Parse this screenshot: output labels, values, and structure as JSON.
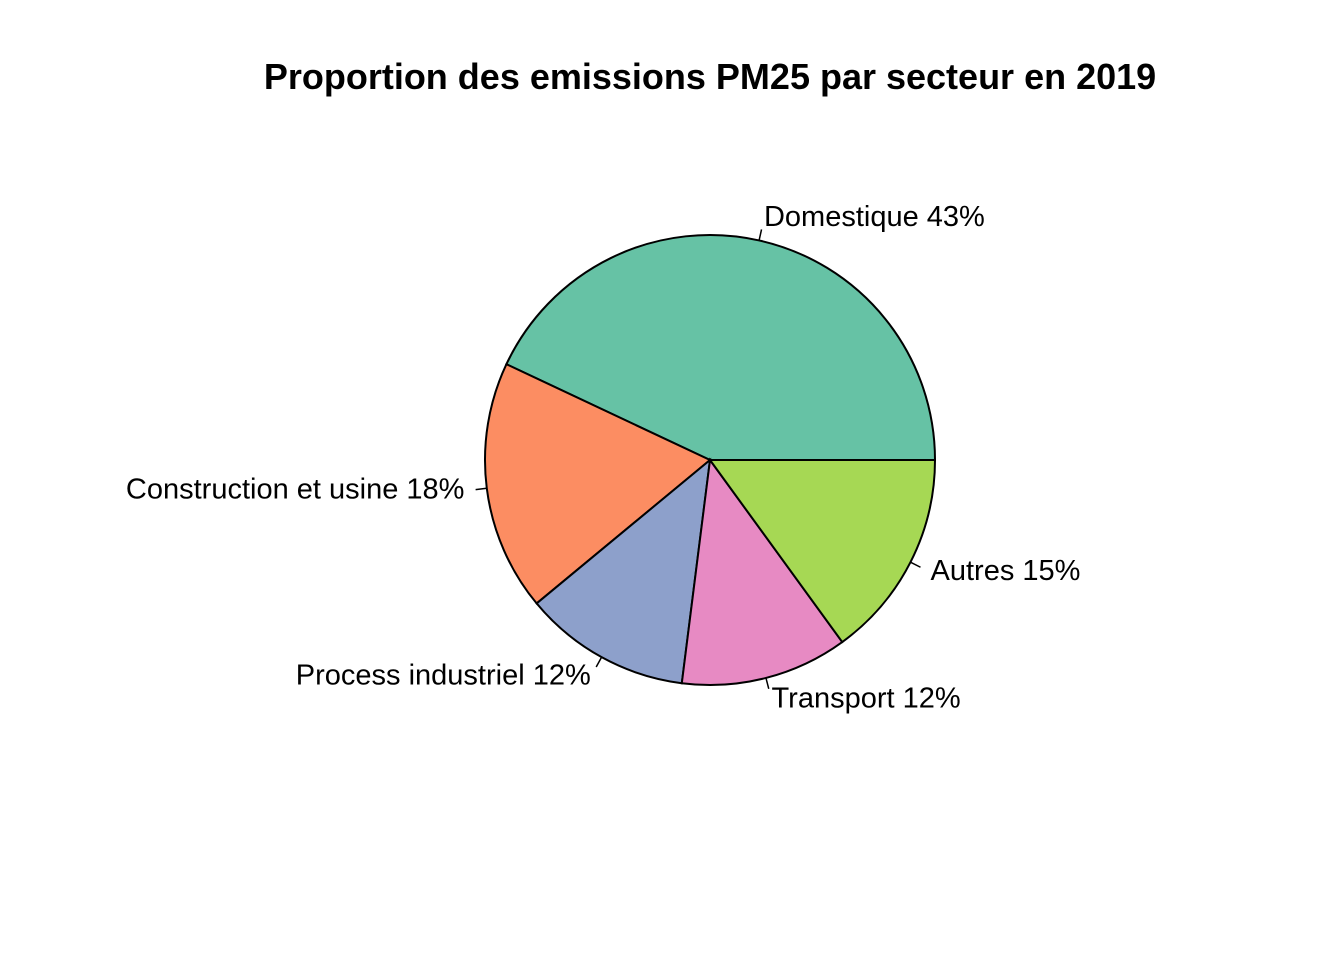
{
  "chart_data": {
    "type": "pie",
    "title": "Proportion des emissions PM25 par secteur en 2019",
    "start_angle_deg": 0,
    "direction": "counterclockwise",
    "slices": [
      {
        "label": "Domestique 43%",
        "value": 43,
        "color": "#66C2A5"
      },
      {
        "label": "Construction et usine 18%",
        "value": 18,
        "color": "#FC8D62"
      },
      {
        "label": "Process industriel 12%",
        "value": 12,
        "color": "#8DA0CB"
      },
      {
        "label": "Transport 12%",
        "value": 12,
        "color": "#E78AC3"
      },
      {
        "label": "Autres 15%",
        "value": 15,
        "color": "#A6D854"
      }
    ]
  }
}
